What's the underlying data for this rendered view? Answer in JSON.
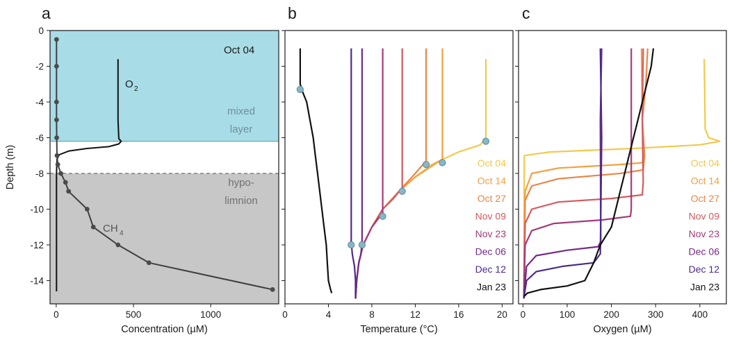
{
  "colors": {
    "mixed_layer": "#a8dce6",
    "hypolimnion": "#c7c7c7",
    "profile": "#3f3f3f",
    "marker": "#87b6c6",
    "dates": [
      "#f2c94c",
      "#f2a040",
      "#ec8445",
      "#d35a5e",
      "#a33a78",
      "#742a86",
      "#4b2a8a",
      "#111111"
    ]
  },
  "chart_data": [
    {
      "type": "line",
      "panel": "a",
      "xlabel": "Concentration (µM)",
      "ylabel": "Depth (m)",
      "xlim": [
        -40,
        1440
      ],
      "ylim": [
        -15.3,
        0
      ],
      "x_ticks": [
        0,
        500,
        1000
      ],
      "y_ticks": [
        0,
        -2,
        -4,
        -6,
        -8,
        -10,
        -12,
        -14
      ],
      "grid": false,
      "annotations": {
        "date": "Oct 04",
        "o2": "O",
        "o2_sub": "2",
        "ch4": "CH",
        "ch4_sub": "4",
        "mixed_1": "mixed",
        "mixed_2": "layer",
        "hypo_1": "hypo-",
        "hypo_2": "limnion"
      },
      "regions": [
        {
          "name": "mixed layer",
          "y_range": [
            0,
            -6.2
          ]
        },
        {
          "name": "hypolimnion",
          "y_range": [
            -8.0,
            -15.3
          ]
        }
      ],
      "series": [
        {
          "name": "O2",
          "points": [
            [
              400,
              -1.6
            ],
            [
              400,
              -3
            ],
            [
              400,
              -5
            ],
            [
              405,
              -6.05
            ],
            [
              420,
              -6.2
            ],
            [
              405,
              -6.35
            ],
            [
              340,
              -6.5
            ],
            [
              200,
              -6.6
            ],
            [
              80,
              -6.75
            ],
            [
              20,
              -6.95
            ],
            [
              5,
              -7.2
            ],
            [
              2,
              -8
            ],
            [
              2,
              -10
            ],
            [
              2,
              -12
            ],
            [
              2,
              -14.6
            ]
          ]
        },
        {
          "name": "CH4",
          "markers": true,
          "points": [
            [
              2,
              -0.5
            ],
            [
              2,
              -2
            ],
            [
              2,
              -4
            ],
            [
              2,
              -5
            ],
            [
              3,
              -6
            ],
            [
              5,
              -7
            ],
            [
              10,
              -7.5
            ],
            [
              30,
              -8
            ],
            [
              60,
              -8.5
            ],
            [
              80,
              -9
            ],
            [
              200,
              -10
            ],
            [
              240,
              -11
            ],
            [
              400,
              -12
            ],
            [
              600,
              -13
            ],
            [
              1400,
              -14.5
            ]
          ]
        }
      ]
    },
    {
      "type": "line",
      "panel": "b",
      "xlabel": "Temperature (°C)",
      "xlim": [
        0,
        21
      ],
      "ylim": [
        -15.3,
        0
      ],
      "x_ticks": [
        0,
        4,
        8,
        12,
        16,
        20
      ],
      "grid": false,
      "series": [
        {
          "name": "Oct 04",
          "points": [
            [
              18.5,
              -1.6
            ],
            [
              18.5,
              -6.0
            ],
            [
              18.0,
              -6.4
            ],
            [
              16.0,
              -6.8
            ],
            [
              13.5,
              -7.5
            ],
            [
              12.0,
              -8.2
            ],
            [
              10.5,
              -9.0
            ],
            [
              9.0,
              -10.0
            ],
            [
              8.0,
              -11.0
            ],
            [
              7.2,
              -12.0
            ],
            [
              6.8,
              -13.0
            ],
            [
              6.6,
              -14.0
            ],
            [
              6.5,
              -15.0
            ]
          ],
          "marker": [
            18.5,
            -6.2
          ]
        },
        {
          "name": "Oct 14",
          "points": [
            [
              14.5,
              -1.0
            ],
            [
              14.5,
              -7.2
            ],
            [
              13.5,
              -7.6
            ],
            [
              12.0,
              -8.2
            ],
            [
              10.5,
              -9.0
            ],
            [
              9.0,
              -10.0
            ],
            [
              8.0,
              -11.0
            ],
            [
              7.2,
              -12.0
            ],
            [
              6.8,
              -13.0
            ],
            [
              6.6,
              -14.0
            ],
            [
              6.5,
              -15.0
            ]
          ],
          "marker": [
            14.5,
            -7.4
          ]
        },
        {
          "name": "Oct 27",
          "points": [
            [
              13.0,
              -1.0
            ],
            [
              13.0,
              -7.3
            ],
            [
              12.0,
              -8.0
            ],
            [
              10.5,
              -9.0
            ],
            [
              9.0,
              -10.0
            ],
            [
              8.0,
              -11.0
            ],
            [
              7.2,
              -12.0
            ],
            [
              6.8,
              -13.0
            ],
            [
              6.6,
              -14.0
            ],
            [
              6.5,
              -15.0
            ]
          ],
          "marker": [
            13.0,
            -7.5
          ]
        },
        {
          "name": "Nov 09",
          "points": [
            [
              10.8,
              -1.0
            ],
            [
              10.8,
              -8.8
            ],
            [
              10.0,
              -9.4
            ],
            [
              9.0,
              -10.0
            ],
            [
              8.0,
              -11.0
            ],
            [
              7.2,
              -12.0
            ],
            [
              6.8,
              -13.0
            ],
            [
              6.6,
              -14.0
            ],
            [
              6.5,
              -15.0
            ]
          ],
          "marker": [
            10.8,
            -9.0
          ]
        },
        {
          "name": "Nov 23",
          "points": [
            [
              9.0,
              -1.0
            ],
            [
              9.0,
              -10.2
            ],
            [
              8.0,
              -11.0
            ],
            [
              7.2,
              -12.0
            ],
            [
              6.8,
              -13.0
            ],
            [
              6.6,
              -14.0
            ],
            [
              6.5,
              -15.0
            ]
          ],
          "marker": [
            9.0,
            -10.4
          ]
        },
        {
          "name": "Dec 06",
          "points": [
            [
              7.1,
              -1.0
            ],
            [
              7.1,
              -11.8
            ],
            [
              7.0,
              -12.5
            ],
            [
              6.8,
              -13.0
            ],
            [
              6.6,
              -14.0
            ],
            [
              6.5,
              -15.0
            ]
          ],
          "marker": [
            7.1,
            -12.0
          ]
        },
        {
          "name": "Dec 12",
          "points": [
            [
              6.1,
              -1.0
            ],
            [
              6.1,
              -11.8
            ],
            [
              6.2,
              -12.5
            ],
            [
              6.4,
              -13.2
            ],
            [
              6.5,
              -14.0
            ],
            [
              6.5,
              -15.0
            ]
          ],
          "marker": [
            6.1,
            -12.0
          ]
        },
        {
          "name": "Jan 23",
          "points": [
            [
              1.4,
              -1.0
            ],
            [
              1.4,
              -3.0
            ],
            [
              1.6,
              -3.4
            ],
            [
              2.0,
              -4.0
            ],
            [
              2.3,
              -5.0
            ],
            [
              2.6,
              -6.0
            ],
            [
              2.8,
              -7.0
            ],
            [
              3.0,
              -8.0
            ],
            [
              3.2,
              -9.0
            ],
            [
              3.4,
              -10.0
            ],
            [
              3.6,
              -11.0
            ],
            [
              3.8,
              -12.0
            ],
            [
              3.9,
              -13.0
            ],
            [
              4.0,
              -14.0
            ],
            [
              4.2,
              -14.5
            ],
            [
              4.3,
              -14.7
            ]
          ],
          "marker": [
            1.4,
            -3.3
          ]
        }
      ]
    },
    {
      "type": "line",
      "panel": "c",
      "xlabel": "Oxygen (µM)",
      "xlim": [
        -10,
        460
      ],
      "ylim": [
        -15.3,
        0
      ],
      "x_ticks": [
        0,
        100,
        200,
        300,
        400
      ],
      "grid": false,
      "legend_position": "right",
      "series": [
        {
          "name": "Oct 04",
          "points": [
            [
              410,
              -1.6
            ],
            [
              412,
              -5.5
            ],
            [
              420,
              -6.0
            ],
            [
              445,
              -6.2
            ],
            [
              400,
              -6.4
            ],
            [
              250,
              -6.6
            ],
            [
              60,
              -6.8
            ],
            [
              3,
              -7.0
            ],
            [
              2,
              -15.0
            ]
          ]
        },
        {
          "name": "Oct 14",
          "points": [
            [
              268,
              -1.0
            ],
            [
              270,
              -5.0
            ],
            [
              272,
              -7.0
            ],
            [
              270,
              -7.4
            ],
            [
              220,
              -7.5
            ],
            [
              80,
              -7.7
            ],
            [
              20,
              -8.0
            ],
            [
              5,
              -9.0
            ],
            [
              2,
              -15.0
            ]
          ]
        },
        {
          "name": "Oct 27",
          "points": [
            [
              282,
              -1.0
            ],
            [
              278,
              -3.0
            ],
            [
              270,
              -5.0
            ],
            [
              275,
              -7.0
            ],
            [
              272,
              -7.8
            ],
            [
              220,
              -8.0
            ],
            [
              80,
              -8.3
            ],
            [
              20,
              -8.7
            ],
            [
              5,
              -9.5
            ],
            [
              2,
              -15.0
            ]
          ]
        },
        {
          "name": "Nov 09",
          "points": [
            [
              272,
              -1.0
            ],
            [
              270,
              -5.0
            ],
            [
              272,
              -8.5
            ],
            [
              270,
              -9.2
            ],
            [
              200,
              -9.4
            ],
            [
              80,
              -9.6
            ],
            [
              20,
              -10.0
            ],
            [
              5,
              -10.8
            ],
            [
              2,
              -15.0
            ]
          ]
        },
        {
          "name": "Nov 23",
          "points": [
            [
              245,
              -1.0
            ],
            [
              245,
              -5.0
            ],
            [
              245,
              -10.0
            ],
            [
              243,
              -10.4
            ],
            [
              180,
              -10.6
            ],
            [
              70,
              -10.8
            ],
            [
              20,
              -11.2
            ],
            [
              5,
              -12.0
            ],
            [
              2,
              -15.0
            ]
          ]
        },
        {
          "name": "Dec 06",
          "points": [
            [
              178,
              -1.0
            ],
            [
              175,
              -5.0
            ],
            [
              176,
              -11.8
            ],
            [
              170,
              -12.1
            ],
            [
              100,
              -12.3
            ],
            [
              30,
              -12.6
            ],
            [
              8,
              -13.2
            ],
            [
              2,
              -15.0
            ]
          ]
        },
        {
          "name": "Dec 12",
          "points": [
            [
              175,
              -1.0
            ],
            [
              178,
              -6.0
            ],
            [
              175,
              -12.5
            ],
            [
              160,
              -13.0
            ],
            [
              90,
              -13.2
            ],
            [
              30,
              -13.5
            ],
            [
              8,
              -14.0
            ],
            [
              2,
              -15.0
            ]
          ]
        },
        {
          "name": "Jan 23",
          "points": [
            [
              295,
              -1.0
            ],
            [
              290,
              -2.0
            ],
            [
              280,
              -3.0
            ],
            [
              270,
              -4.0
            ],
            [
              260,
              -5.0
            ],
            [
              250,
              -6.0
            ],
            [
              240,
              -7.0
            ],
            [
              230,
              -8.0
            ],
            [
              220,
              -9.0
            ],
            [
              210,
              -10.0
            ],
            [
              200,
              -11.0
            ],
            [
              175,
              -12.0
            ],
            [
              160,
              -13.0
            ],
            [
              140,
              -14.0
            ],
            [
              100,
              -14.3
            ],
            [
              40,
              -14.5
            ],
            [
              10,
              -14.7
            ],
            [
              2,
              -14.9
            ]
          ]
        }
      ]
    }
  ]
}
